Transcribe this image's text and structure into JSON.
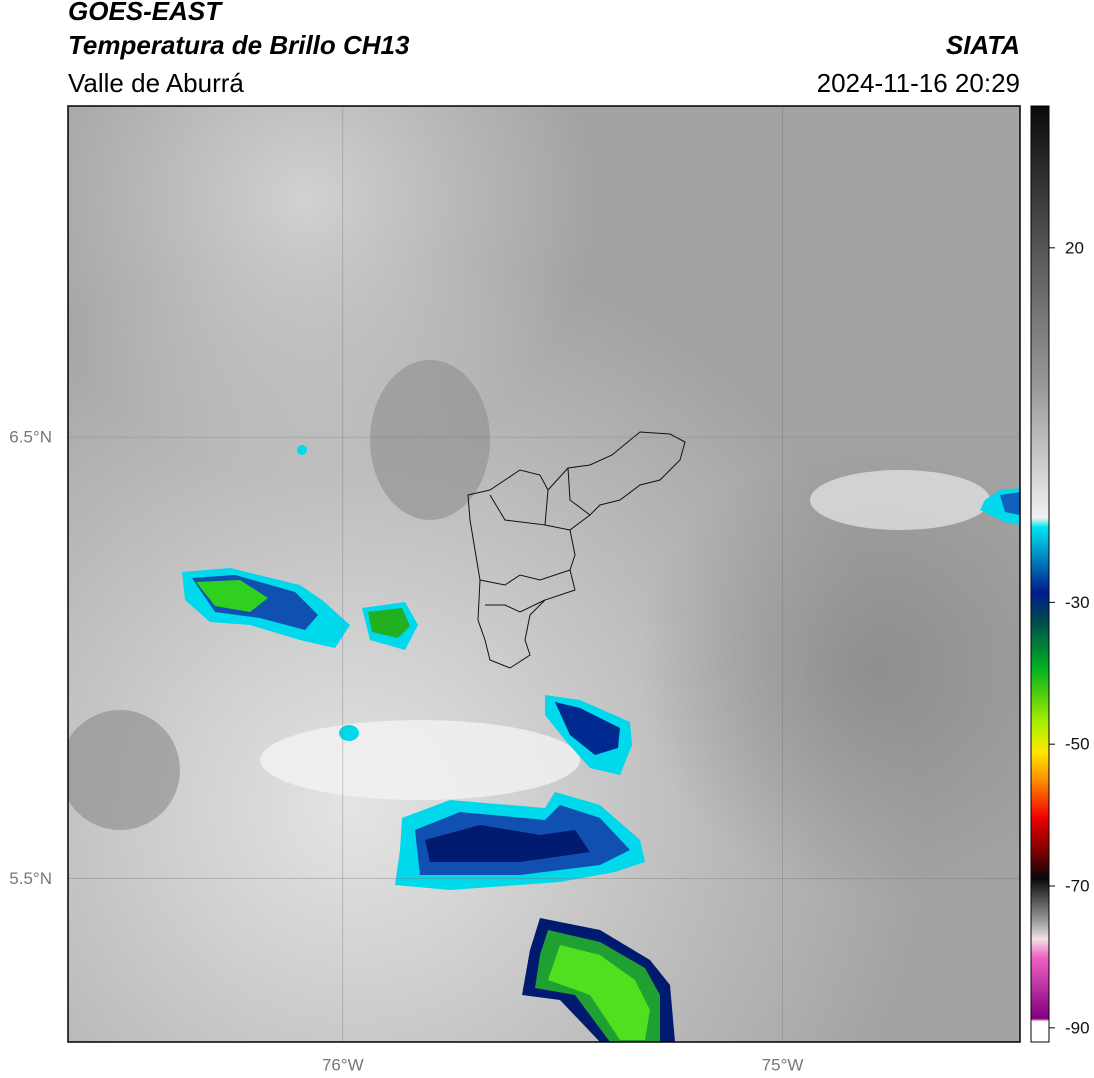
{
  "header": {
    "title": "GOES-EAST",
    "subtitle": "Temperatura de Brillo CH13",
    "region": "Valle de Aburrá",
    "source": "SIATA",
    "datetime": "2024-11-16 20:29"
  },
  "map": {
    "xlim": [
      -76.625,
      -74.46
    ],
    "ylim": [
      5.13,
      7.25
    ],
    "xticks": [
      {
        "value": -76,
        "label": "76°W"
      },
      {
        "value": -75,
        "label": "75°W"
      }
    ],
    "yticks": [
      {
        "value": 6.5,
        "label": "6.5°N"
      },
      {
        "value": 5.5,
        "label": "5.5°N"
      }
    ],
    "grid": true
  },
  "colorbar": {
    "lim": [
      -92,
      40
    ],
    "ticks": [
      20,
      -30,
      -50,
      -70,
      -90
    ]
  }
}
